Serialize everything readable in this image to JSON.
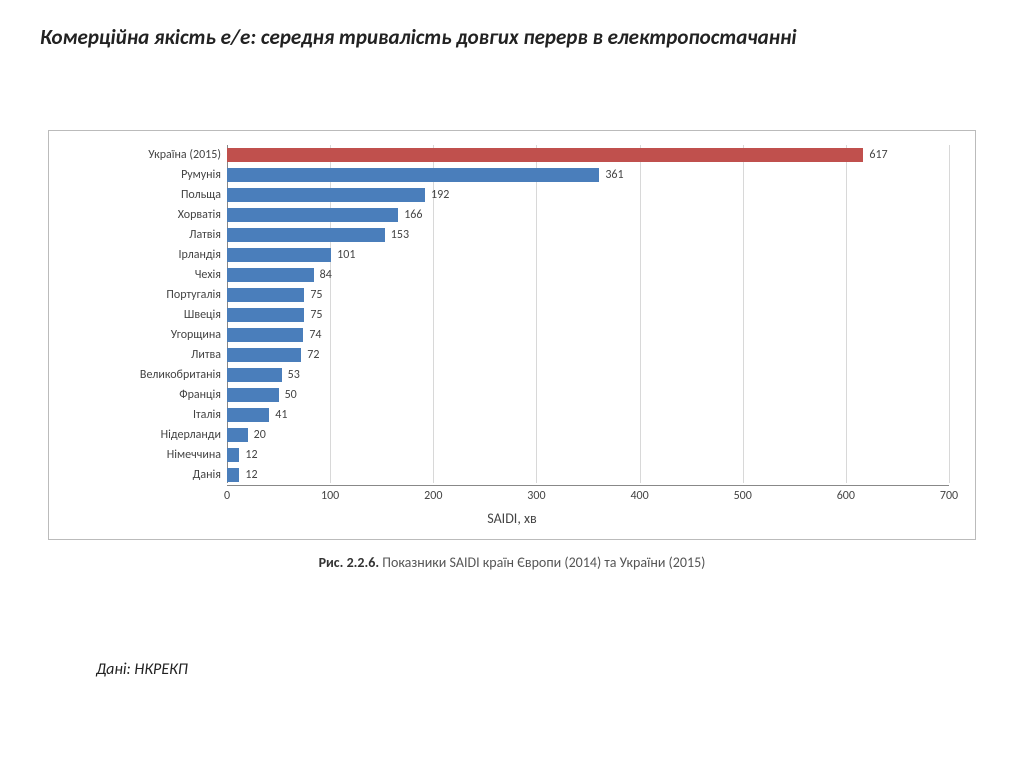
{
  "title": "Комерційна якість е/е: середня тривалість довгих перерв в електропостачанні",
  "caption_bold": "Рис. 2.2.6.",
  "caption_rest": " Показники SAIDI країн Європи (2014) та України (2015)",
  "source": "Дані: НКРЕКП",
  "chart": {
    "type": "bar-horizontal",
    "x_axis_title": "SAIDI, хв",
    "xlim": [
      0,
      700
    ],
    "xtick_step": 100,
    "xticks": [
      "0",
      "100",
      "200",
      "300",
      "400",
      "500",
      "600",
      "700"
    ],
    "bar_default_color": "#4a7ebb",
    "highlight_color": "#c0504d",
    "grid_color": "#d8d8d8",
    "axis_color": "#888888",
    "background_color": "#ffffff",
    "label_fontsize": 12,
    "axis_title_fontsize": 14,
    "bars": [
      {
        "label": "Україна (2015)",
        "value": 617,
        "color": "#c0504d"
      },
      {
        "label": "Румунія",
        "value": 361,
        "color": "#4a7ebb"
      },
      {
        "label": "Польща",
        "value": 192,
        "color": "#4a7ebb"
      },
      {
        "label": "Хорватія",
        "value": 166,
        "color": "#4a7ebb"
      },
      {
        "label": "Латвія",
        "value": 153,
        "color": "#4a7ebb"
      },
      {
        "label": "Ірландія",
        "value": 101,
        "color": "#4a7ebb"
      },
      {
        "label": "Чехія",
        "value": 84,
        "color": "#4a7ebb"
      },
      {
        "label": "Португалія",
        "value": 75,
        "color": "#4a7ebb"
      },
      {
        "label": "Швеція",
        "value": 75,
        "color": "#4a7ebb"
      },
      {
        "label": "Угорщина",
        "value": 74,
        "color": "#4a7ebb"
      },
      {
        "label": "Литва",
        "value": 72,
        "color": "#4a7ebb"
      },
      {
        "label": "Великобританія",
        "value": 53,
        "color": "#4a7ebb"
      },
      {
        "label": "Франція",
        "value": 50,
        "color": "#4a7ebb"
      },
      {
        "label": "Італія",
        "value": 41,
        "color": "#4a7ebb"
      },
      {
        "label": "Нідерланди",
        "value": 20,
        "color": "#4a7ebb"
      },
      {
        "label": "Німеччина",
        "value": 12,
        "color": "#4a7ebb"
      },
      {
        "label": "Данія",
        "value": 12,
        "color": "#4a7ebb"
      }
    ]
  }
}
